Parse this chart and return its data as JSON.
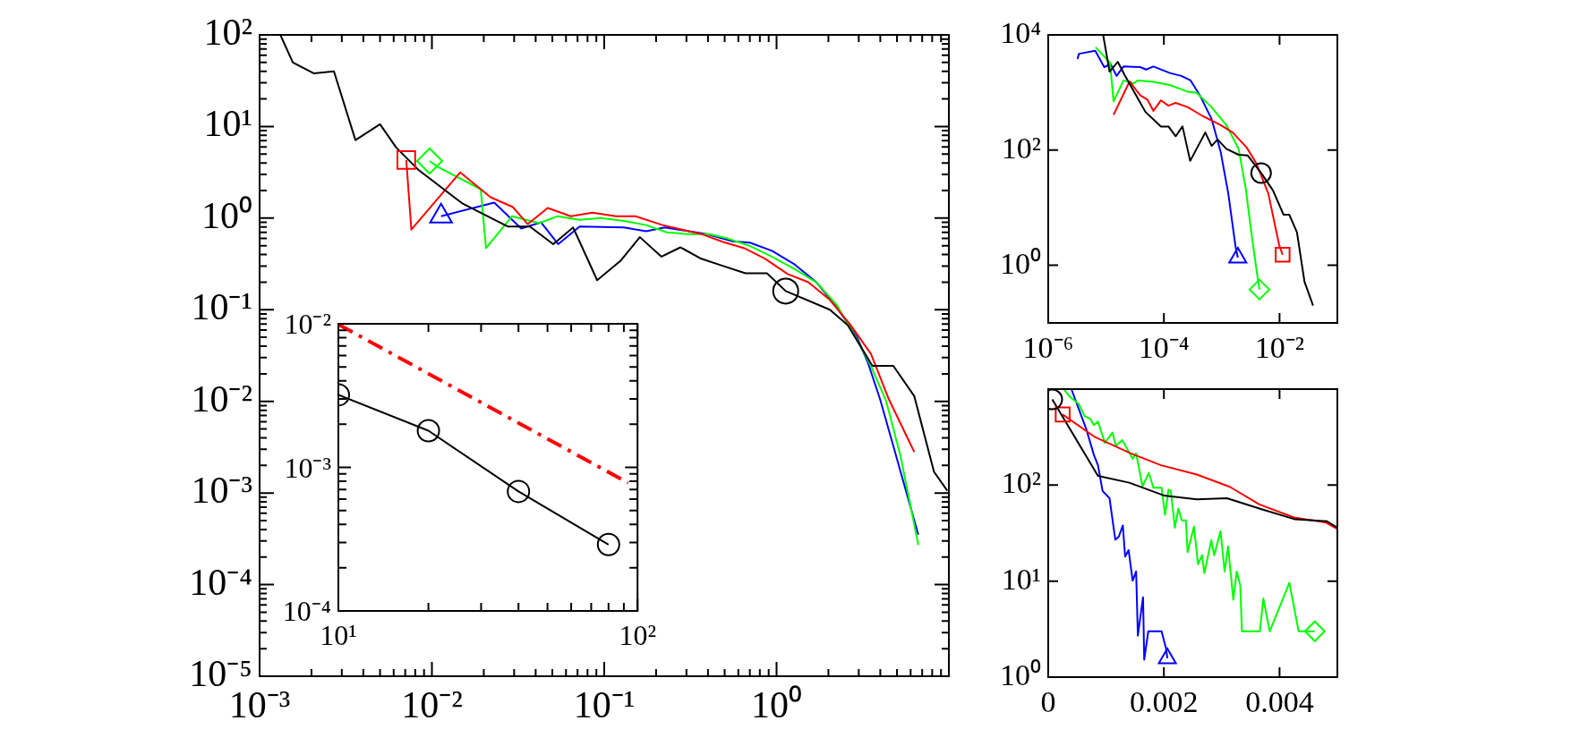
{
  "chart_data": [
    {
      "type": "line",
      "log": "xy",
      "xlim": [
        0.001,
        10
      ],
      "ylim": [
        1e-05,
        100
      ],
      "xticks": [
        {
          "value": 0.001,
          "label": "10⁻³"
        },
        {
          "value": 0.002,
          "label": null
        },
        {
          "value": 0.003,
          "label": null
        },
        {
          "value": 0.004,
          "label": null
        },
        {
          "value": 0.005,
          "label": null
        },
        {
          "value": 0.006,
          "label": null
        },
        {
          "value": 0.007,
          "label": null
        },
        {
          "value": 0.008,
          "label": null
        },
        {
          "value": 0.009,
          "label": null
        },
        {
          "value": 0.01,
          "label": "10⁻²"
        },
        {
          "value": 0.02,
          "label": null
        },
        {
          "value": 0.03,
          "label": null
        },
        {
          "value": 0.04,
          "label": null
        },
        {
          "value": 0.05,
          "label": null
        },
        {
          "value": 0.06,
          "label": null
        },
        {
          "value": 0.07,
          "label": null
        },
        {
          "value": 0.08,
          "label": null
        },
        {
          "value": 0.09,
          "label": null
        },
        {
          "value": 0.1,
          "label": "10⁻¹"
        },
        {
          "value": 0.2,
          "label": null
        },
        {
          "value": 0.3,
          "label": null
        },
        {
          "value": 0.4,
          "label": null
        },
        {
          "value": 0.5,
          "label": null
        },
        {
          "value": 0.6,
          "label": null
        },
        {
          "value": 0.7,
          "label": null
        },
        {
          "value": 0.8,
          "label": null
        },
        {
          "value": 0.9,
          "label": null
        },
        {
          "value": 1,
          "label": "10⁰"
        },
        {
          "value": 2,
          "label": null
        },
        {
          "value": 3,
          "label": null
        },
        {
          "value": 4,
          "label": null
        },
        {
          "value": 5,
          "label": null
        },
        {
          "value": 6,
          "label": null
        },
        {
          "value": 7,
          "label": null
        },
        {
          "value": 8,
          "label": null
        },
        {
          "value": 9,
          "label": null
        }
      ],
      "yticks": [
        {
          "value": 1e-05,
          "label": "10⁻⁵"
        },
        {
          "value": 2e-05,
          "label": null
        },
        {
          "value": 3e-05,
          "label": null
        },
        {
          "value": 4e-05,
          "label": null
        },
        {
          "value": 5e-05,
          "label": null
        },
        {
          "value": 6e-05,
          "label": null
        },
        {
          "value": 7e-05,
          "label": null
        },
        {
          "value": 8e-05,
          "label": null
        },
        {
          "value": 9e-05,
          "label": null
        },
        {
          "value": 0.0001,
          "label": "10⁻⁴"
        },
        {
          "value": 0.0002,
          "label": null
        },
        {
          "value": 0.0003,
          "label": null
        },
        {
          "value": 0.0004,
          "label": null
        },
        {
          "value": 0.0005,
          "label": null
        },
        {
          "value": 0.0006,
          "label": null
        },
        {
          "value": 0.0007,
          "label": null
        },
        {
          "value": 0.0008,
          "label": null
        },
        {
          "value": 0.0009,
          "label": null
        },
        {
          "value": 0.001,
          "label": "10⁻³"
        },
        {
          "value": 0.002,
          "label": null
        },
        {
          "value": 0.003,
          "label": null
        },
        {
          "value": 0.004,
          "label": null
        },
        {
          "value": 0.005,
          "label": null
        },
        {
          "value": 0.006,
          "label": null
        },
        {
          "value": 0.007,
          "label": null
        },
        {
          "value": 0.008,
          "label": null
        },
        {
          "value": 0.009,
          "label": null
        },
        {
          "value": 0.01,
          "label": "10⁻²"
        },
        {
          "value": 0.02,
          "label": null
        },
        {
          "value": 0.03,
          "label": null
        },
        {
          "value": 0.04,
          "label": null
        },
        {
          "value": 0.05,
          "label": null
        },
        {
          "value": 0.06,
          "label": null
        },
        {
          "value": 0.07,
          "label": null
        },
        {
          "value": 0.08,
          "label": null
        },
        {
          "value": 0.09,
          "label": null
        },
        {
          "value": 0.1,
          "label": "10⁻¹"
        },
        {
          "value": 0.2,
          "label": null
        },
        {
          "value": 0.3,
          "label": null
        },
        {
          "value": 0.4,
          "label": null
        },
        {
          "value": 0.5,
          "label": null
        },
        {
          "value": 0.6,
          "label": null
        },
        {
          "value": 0.7,
          "label": null
        },
        {
          "value": 0.8,
          "label": null
        },
        {
          "value": 0.9,
          "label": null
        },
        {
          "value": 1,
          "label": "10⁰"
        },
        {
          "value": 2,
          "label": null
        },
        {
          "value": 3,
          "label": null
        },
        {
          "value": 4,
          "label": null
        },
        {
          "value": 5,
          "label": null
        },
        {
          "value": 6,
          "label": null
        },
        {
          "value": 7,
          "label": null
        },
        {
          "value": 8,
          "label": null
        },
        {
          "value": 9,
          "label": null
        },
        {
          "value": 10,
          "label": "10¹"
        },
        {
          "value": 20,
          "label": null
        },
        {
          "value": 30,
          "label": null
        },
        {
          "value": 40,
          "label": null
        },
        {
          "value": 50,
          "label": null
        },
        {
          "value": 60,
          "label": null
        },
        {
          "value": 70,
          "label": null
        },
        {
          "value": 80,
          "label": null
        },
        {
          "value": 90,
          "label": null
        },
        {
          "value": 100,
          "label": "10²"
        }
      ],
      "series": [
        {
          "color": "#000000",
          "x": [
            0.00132,
            0.00156,
            0.00207,
            0.0027,
            0.0036,
            0.005,
            0.0062,
            0.0083,
            0.015,
            0.0275,
            0.037,
            0.0506,
            0.066,
            0.091,
            0.124,
            0.161,
            0.215,
            0.277,
            0.366,
            0.49,
            0.66,
            0.88,
            1.13,
            2.04,
            2.59,
            3.6,
            4.76,
            6.3,
            8.2,
            9.8
          ],
          "values": [
            100,
            50,
            38,
            40,
            7.1,
            10.6,
            5.9,
            3.4,
            1.45,
            0.81,
            0.81,
            0.52,
            0.79,
            0.21,
            0.34,
            0.62,
            0.38,
            0.48,
            0.36,
            0.3,
            0.25,
            0.25,
            0.16,
            0.1,
            0.068,
            0.0244,
            0.0244,
            0.0114,
            0.0017,
            0.00106
          ]
        },
        {
          "color": "#ff0000",
          "x": [
            0.0071,
            0.0076,
            0.0146,
            0.0219,
            0.0295,
            0.036,
            0.047,
            0.064,
            0.0855,
            0.117,
            0.152,
            0.218,
            0.366,
            0.49,
            0.65,
            0.86,
            1.16,
            1.53,
            2.04,
            2.69,
            3.53,
            4.49,
            6.3
          ],
          "values": [
            4.3,
            0.75,
            3.16,
            1.69,
            1.32,
            0.86,
            1.29,
            1.05,
            1.15,
            1.05,
            1.05,
            0.84,
            0.67,
            0.55,
            0.47,
            0.36,
            0.245,
            0.2,
            0.128,
            0.068,
            0.033,
            0.0105,
            0.0028
          ]
        },
        {
          "color": "#00ff00",
          "x": [
            0.0097,
            0.0109,
            0.0192,
            0.0206,
            0.0292,
            0.042,
            0.0537,
            0.072,
            0.096,
            0.13,
            0.175,
            0.231,
            0.304,
            0.407,
            0.52,
            0.695,
            0.95,
            1.31,
            1.72,
            2.24,
            2.92,
            3.53,
            4.33,
            5.25,
            6.65
          ],
          "values": [
            4.2,
            3.6,
            2.07,
            0.47,
            1.05,
            0.88,
            1.05,
            0.96,
            1.0,
            0.93,
            0.84,
            0.7,
            0.67,
            0.67,
            0.6,
            0.5,
            0.376,
            0.27,
            0.196,
            0.112,
            0.048,
            0.0244,
            0.01,
            0.0025,
            0.00027
          ]
        },
        {
          "color": "#0000ff",
          "x": [
            0.0113,
            0.023,
            0.033,
            0.043,
            0.054,
            0.072,
            0.13,
            0.175,
            0.225,
            0.395,
            0.55,
            0.7,
            0.94,
            1.28,
            1.7,
            2.19,
            2.92,
            3.4,
            3.98,
            4.87,
            6.65
          ],
          "values": [
            1.05,
            1.48,
            0.77,
            0.9,
            0.52,
            0.81,
            0.79,
            0.72,
            0.79,
            0.67,
            0.56,
            0.54,
            0.44,
            0.31,
            0.2,
            0.112,
            0.051,
            0.026,
            0.0107,
            0.0028,
            0.00035
          ]
        },
        {
          "type": "scatter",
          "marker": "circle",
          "color": "#000000",
          "x": [
            1.13
          ],
          "values": [
            0.16
          ]
        },
        {
          "type": "scatter",
          "marker": "square",
          "color": "#ff0000",
          "x": [
            0.0071
          ],
          "values": [
            4.3
          ]
        },
        {
          "type": "scatter",
          "marker": "diamond",
          "color": "#00ff00",
          "x": [
            0.0097
          ],
          "values": [
            4.2
          ]
        },
        {
          "type": "scatter",
          "marker": "triangle",
          "color": "#0000ff",
          "x": [
            0.0113
          ],
          "values": [
            1.05
          ]
        }
      ]
    },
    {
      "type": "line",
      "log": "xy",
      "xlim": [
        10,
        100
      ],
      "ylim": [
        0.0001,
        0.01
      ],
      "xticks": [
        {
          "value": 10,
          "label": "10¹"
        },
        {
          "value": 20,
          "label": null
        },
        {
          "value": 30,
          "label": null
        },
        {
          "value": 40,
          "label": null
        },
        {
          "value": 50,
          "label": null
        },
        {
          "value": 60,
          "label": null
        },
        {
          "value": 70,
          "label": null
        },
        {
          "value": 80,
          "label": null
        },
        {
          "value": 90,
          "label": null
        },
        {
          "value": 100,
          "label": "10²"
        }
      ],
      "yticks": [
        {
          "value": 0.0001,
          "label": "10⁻⁴"
        },
        {
          "value": 0.0002,
          "label": null
        },
        {
          "value": 0.0003,
          "label": null
        },
        {
          "value": 0.0004,
          "label": null
        },
        {
          "value": 0.0005,
          "label": null
        },
        {
          "value": 0.0006,
          "label": null
        },
        {
          "value": 0.0007,
          "label": null
        },
        {
          "value": 0.0008,
          "label": null
        },
        {
          "value": 0.0009,
          "label": null
        },
        {
          "value": 0.001,
          "label": "10⁻³"
        },
        {
          "value": 0.002,
          "label": null
        },
        {
          "value": 0.003,
          "label": null
        },
        {
          "value": 0.004,
          "label": null
        },
        {
          "value": 0.005,
          "label": null
        },
        {
          "value": 0.006,
          "label": null
        },
        {
          "value": 0.007,
          "label": null
        },
        {
          "value": 0.008,
          "label": null
        },
        {
          "value": 0.009,
          "label": null
        },
        {
          "value": 0.01,
          "label": "10⁻²"
        }
      ],
      "series": [
        {
          "color": "#000000",
          "marker": "circle",
          "x": [
            10,
            20,
            40,
            80
          ],
          "values": [
            0.0032,
            0.0018,
            0.00068,
            0.00029
          ]
        },
        {
          "color": "#ff0000",
          "line_style": "dashed",
          "x": [
            10,
            93
          ],
          "values": [
            0.0099,
            0.00078
          ]
        }
      ]
    },
    {
      "type": "line",
      "log": "xy",
      "xlim": [
        1e-06,
        0.1
      ],
      "ylim": [
        0.1,
        10000
      ],
      "xticks": [
        {
          "value": 1e-06,
          "label": "10⁻⁶"
        },
        {
          "value": 0.0001,
          "label": "10⁻⁴"
        },
        {
          "value": 0.01,
          "label": "10⁻²"
        }
      ],
      "yticks": [
        {
          "value": 1,
          "label": "10⁰"
        },
        {
          "value": 100,
          "label": "10²"
        },
        {
          "value": 10000,
          "label": "10⁴"
        }
      ],
      "series": [
        {
          "color": "#000000",
          "x": [
            8.9e-06,
            1.15e-05,
            1.6e-05,
            2.1e-05,
            4.8e-05,
            8.9e-05,
            0.00012,
            0.00016,
            0.00021,
            0.000285,
            0.00052,
            0.00067,
            0.00085,
            0.0012,
            0.00196,
            0.0028,
            0.0048,
            0.0077,
            0.0117,
            0.0147,
            0.02,
            0.027,
            0.038
          ],
          "values": [
            10000,
            2300,
            3400,
            2000,
            460,
            257,
            257,
            174,
            257,
            65,
            202,
            118,
            153,
            105,
            83,
            81,
            40,
            20,
            7.6,
            7.6,
            3.75,
            0.52,
            0.2
          ]
        },
        {
          "color": "#ff0000",
          "x": [
            1.35e-05,
            2.55e-05,
            3.9e-05,
            5.2e-05,
            6.6e-05,
            8.9e-05,
            0.00012,
            0.00016,
            0.00026,
            0.00047,
            0.00096,
            0.00155,
            0.0027,
            0.004,
            0.0064,
            0.0098,
            0.0113
          ],
          "values": [
            410,
            1560,
            890,
            750,
            480,
            730,
            590,
            660,
            555,
            390,
            272,
            202,
            111,
            58,
            17.6,
            2.3,
            1.53
          ]
        },
        {
          "color": "#00ff00",
          "x": [
            6.6e-06,
            1.17e-05,
            1.35e-05,
            2e-05,
            3e-05,
            3.6e-05,
            6.6e-05,
            0.000127,
            0.00026,
            0.00037,
            0.00067,
            0.0012,
            0.00196,
            0.0026,
            0.0033,
            0.0042,
            0.0045
          ],
          "values": [
            6100,
            3300,
            700,
            1620,
            1440,
            1620,
            1525,
            1350,
            1030,
            985,
            555,
            272,
            105,
            22,
            3.3,
            0.59,
            0.38
          ]
        },
        {
          "color": "#0000ff",
          "x": [
            3.2e-06,
            3.4e-06,
            6.5e-06,
            9.3e-06,
            1.2e-05,
            1.52e-05,
            2e-05,
            3.9e-05,
            4.9e-05,
            6.6e-05,
            0.000127,
            0.0002,
            0.00029,
            0.00042,
            0.00067,
            0.00096,
            0.0013,
            0.00174,
            0.0019
          ],
          "values": [
            3800,
            4700,
            5300,
            2760,
            3100,
            1940,
            2830,
            2760,
            2500,
            2830,
            2180,
            1940,
            1620,
            890,
            345,
            93,
            17.6,
            2.07,
            1.36
          ]
        },
        {
          "type": "scatter",
          "marker": "circle",
          "color": "#000000",
          "x": [
            0.0048
          ],
          "values": [
            40
          ]
        },
        {
          "type": "scatter",
          "marker": "square",
          "color": "#ff0000",
          "x": [
            0.0113
          ],
          "values": [
            1.53
          ]
        },
        {
          "type": "scatter",
          "marker": "diamond",
          "color": "#00ff00",
          "x": [
            0.0045
          ],
          "values": [
            0.38
          ]
        },
        {
          "type": "scatter",
          "marker": "triangle",
          "color": "#0000ff",
          "x": [
            0.0019
          ],
          "values": [
            1.36
          ]
        }
      ]
    },
    {
      "type": "line",
      "log": "y",
      "xlim": [
        0,
        0.005
      ],
      "ylim": [
        1,
        1000
      ],
      "xticks": [
        0,
        0.002,
        0.004
      ],
      "yticks": [
        {
          "value": 1,
          "label": "10⁰"
        },
        {
          "value": 10,
          "label": "10¹"
        },
        {
          "value": 100,
          "label": "10²"
        }
      ],
      "series": [
        {
          "color": "#000000",
          "x": [
            7e-05,
            0.00086,
            0.0014,
            0.002,
            0.00257,
            0.00309,
            0.00365,
            0.00427,
            0.00482,
            0.005
          ],
          "values": [
            780,
            125,
            106,
            78,
            71,
            73,
            57,
            44,
            42,
            36
          ]
        },
        {
          "color": "#ff0000",
          "x": [
            0.00025,
            0.00081,
            0.00143,
            0.00195,
            0.00257,
            0.00314,
            0.00365,
            0.00425,
            0.00479,
            0.005
          ],
          "values": [
            544,
            316,
            214,
            161,
            129,
            96,
            63,
            46,
            41,
            35
          ]
        },
        {
          "color": "#00ff00",
          "x": [
            0.00027,
            0.00037,
            0.00053,
            0.00063,
            0.00073,
            0.00079,
            0.00086,
            0.00098,
            0.00111,
            0.00117,
            0.00128,
            0.00146,
            0.00152,
            0.00163,
            0.00174,
            0.00182,
            0.00196,
            0.00202,
            0.00208,
            0.00212,
            0.00219,
            0.00225,
            0.00231,
            0.00238,
            0.00241,
            0.00252,
            0.00259,
            0.00266,
            0.0027,
            0.00282,
            0.00287,
            0.00298,
            0.00305,
            0.00311,
            0.0032,
            0.00326,
            0.00332,
            0.00335,
            0.00366,
            0.00372,
            0.00383,
            0.00417,
            0.00433,
            0.00443,
            0.00461
          ],
          "values": [
            1000,
            836,
            698,
            524,
            488,
            422,
            460,
            275,
            353,
            256,
            295,
            188,
            214,
            97,
            134,
            94,
            94,
            49,
            90,
            87,
            36,
            57,
            43,
            43,
            20,
            37,
            15,
            18.6,
            12.1,
            26.7,
            18.6,
            33,
            12.6,
            23,
            6.4,
            12.6,
            9.1,
            3.0,
            3.0,
            6.6,
            3.0,
            9.6,
            3.0,
            3.0,
            3.0
          ]
        },
        {
          "color": "#0000ff",
          "x": [
            0.0004,
            0.00066,
            0.00079,
            0.00086,
            0.00094,
            0.00106,
            0.00116,
            0.00122,
            0.00129,
            0.00133,
            0.00139,
            0.00146,
            0.00152,
            0.00155,
            0.00164,
            0.00166,
            0.00173,
            0.00196,
            0.00204,
            0.00206
          ],
          "values": [
            1000,
            380,
            206,
            161,
            87,
            73,
            27,
            29,
            38,
            18,
            21,
            10.1,
            12.6,
            2.7,
            6.8,
            1.52,
            3.0,
            3.0,
            1.95,
            1.57
          ]
        },
        {
          "type": "scatter",
          "marker": "circle",
          "color": "#000000",
          "x": [
            7e-05
          ],
          "values": [
            780
          ]
        },
        {
          "type": "scatter",
          "marker": "square",
          "color": "#ff0000",
          "x": [
            0.00025
          ],
          "values": [
            544
          ]
        },
        {
          "type": "scatter",
          "marker": "diamond",
          "color": "#00ff00",
          "x": [
            0.00461
          ],
          "values": [
            3.0
          ]
        },
        {
          "type": "scatter",
          "marker": "triangle",
          "color": "#0000ff",
          "x": [
            0.00206
          ],
          "values": [
            1.57
          ]
        }
      ]
    }
  ]
}
